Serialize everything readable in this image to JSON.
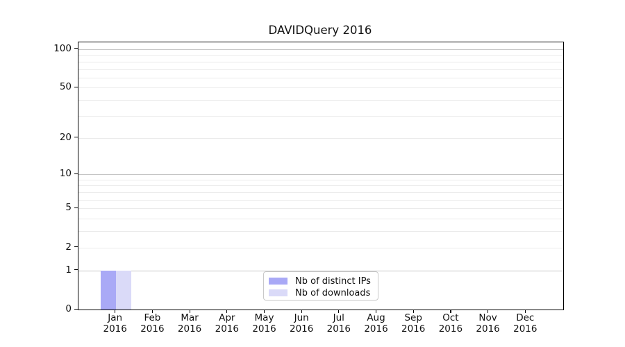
{
  "chart_data": {
    "type": "bar",
    "title": "DAVIDQuery 2016",
    "x_categories": [
      {
        "month": "Jan",
        "year": "2016"
      },
      {
        "month": "Feb",
        "year": "2016"
      },
      {
        "month": "Mar",
        "year": "2016"
      },
      {
        "month": "Apr",
        "year": "2016"
      },
      {
        "month": "May",
        "year": "2016"
      },
      {
        "month": "Jun",
        "year": "2016"
      },
      {
        "month": "Jul",
        "year": "2016"
      },
      {
        "month": "Aug",
        "year": "2016"
      },
      {
        "month": "Sep",
        "year": "2016"
      },
      {
        "month": "Oct",
        "year": "2016"
      },
      {
        "month": "Nov",
        "year": "2016"
      },
      {
        "month": "Dec",
        "year": "2016"
      }
    ],
    "series": [
      {
        "name": "Nb of distinct IPs",
        "color": "#a9a9f6",
        "values": [
          1,
          0,
          0,
          0,
          0,
          0,
          0,
          0,
          0,
          0,
          0,
          0
        ]
      },
      {
        "name": "Nb of downloads",
        "color": "#dadaf8",
        "values": [
          1,
          0,
          0,
          0,
          0,
          0,
          0,
          0,
          0,
          0,
          0,
          0
        ]
      }
    ],
    "yscale": "log1p",
    "yticks_labeled": [
      0,
      1,
      2,
      5,
      10,
      20,
      50,
      100
    ],
    "ygrid_major": [
      1,
      10,
      100
    ],
    "ygrid_minor": [
      2,
      3,
      4,
      5,
      6,
      7,
      8,
      9,
      20,
      30,
      40,
      50,
      60,
      70,
      80,
      90
    ],
    "ylim": [
      0,
      113
    ],
    "xlabel": "",
    "ylabel": "",
    "grid": "horizontal",
    "legend_position": "lower center",
    "colors": {
      "grid_major": "#c5c5c5",
      "grid_minor": "#ebebeb",
      "spine": "#000000",
      "text": "#111111"
    }
  }
}
